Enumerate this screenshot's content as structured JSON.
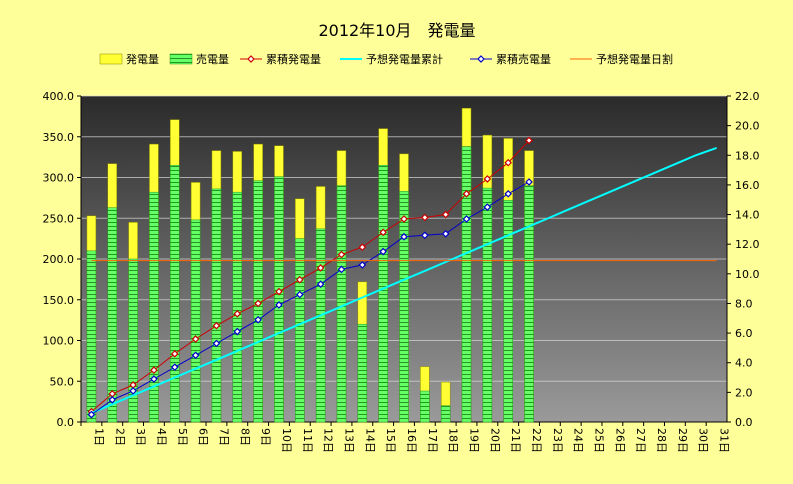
{
  "chart_data": {
    "type": "bar",
    "title": "2012年10月　発電量",
    "categories": [
      "1日",
      "2日",
      "3日",
      "4日",
      "5日",
      "6日",
      "7日",
      "8日",
      "9日",
      "10日",
      "11日",
      "12日",
      "13日",
      "14日",
      "15日",
      "16日",
      "17日",
      "18日",
      "19日",
      "20日",
      "21日",
      "22日",
      "23日",
      "24日",
      "25日",
      "26日",
      "27日",
      "28日",
      "29日",
      "30日",
      "31日"
    ],
    "ylim": [
      0,
      400
    ],
    "yticks": [
      0,
      50,
      100,
      150,
      200,
      250,
      300,
      350,
      400
    ],
    "ytick_labels": [
      "0.0",
      "50.0",
      "100.0",
      "150.0",
      "200.0",
      "250.0",
      "300.0",
      "350.0",
      "400.0"
    ],
    "y2lim": [
      0,
      22
    ],
    "y2ticks": [
      0,
      2,
      4,
      6,
      8,
      10,
      12,
      14,
      16,
      18,
      20,
      22
    ],
    "y2tick_labels": [
      "0.0",
      "2.0",
      "4.0",
      "6.0",
      "8.0",
      "10.0",
      "12.0",
      "14.0",
      "16.0",
      "18.0",
      "20.0",
      "22.0"
    ],
    "grid": true,
    "legend_position": "top",
    "series": [
      {
        "name": "発電量",
        "kind": "bar",
        "axis": "left",
        "color": "#ffff33",
        "values": [
          253,
          317,
          245,
          341,
          371,
          294,
          333,
          332,
          341,
          339,
          274,
          289,
          333,
          172,
          360,
          329,
          68,
          49,
          385,
          352,
          348,
          333,
          null,
          null,
          null,
          null,
          null,
          null,
          null,
          null,
          null
        ]
      },
      {
        "name": "売電量",
        "kind": "bar",
        "axis": "left",
        "color": "#66ff66",
        "values": [
          210,
          263,
          200,
          282,
          315,
          248,
          286,
          282,
          296,
          301,
          225,
          237,
          290,
          120,
          315,
          283,
          38,
          20,
          338,
          287,
          272,
          290,
          null,
          null,
          null,
          null,
          null,
          null,
          null,
          null,
          null
        ]
      },
      {
        "name": "累積発電量",
        "kind": "line",
        "axis": "right",
        "color": "#cc0000",
        "marker": "diamond",
        "values": [
          0.7,
          1.9,
          2.5,
          3.5,
          4.6,
          5.6,
          6.5,
          7.3,
          8.0,
          8.8,
          9.6,
          10.4,
          11.3,
          11.8,
          12.8,
          13.7,
          13.8,
          14.0,
          15.4,
          16.4,
          17.5,
          19.0,
          null,
          null,
          null,
          null,
          null,
          null,
          null,
          null,
          null
        ]
      },
      {
        "name": "予想発電量累計",
        "kind": "line",
        "axis": "right",
        "color": "#00ffff",
        "values": [
          0.6,
          1.2,
          1.8,
          2.4,
          3.0,
          3.6,
          4.2,
          4.8,
          5.4,
          6.0,
          6.6,
          7.2,
          7.8,
          8.4,
          9.0,
          9.6,
          10.2,
          10.8,
          11.4,
          12.0,
          12.6,
          13.2,
          13.8,
          14.4,
          15.0,
          15.6,
          16.2,
          16.8,
          17.4,
          18.0,
          18.5
        ]
      },
      {
        "name": "累積売電量",
        "kind": "line",
        "axis": "right",
        "color": "#0000cc",
        "marker": "diamond",
        "values": [
          0.5,
          1.5,
          2.1,
          2.9,
          3.7,
          4.5,
          5.3,
          6.1,
          6.9,
          7.9,
          8.6,
          9.3,
          10.3,
          10.6,
          11.5,
          12.5,
          12.6,
          12.7,
          13.7,
          14.5,
          15.4,
          16.2,
          null,
          null,
          null,
          null,
          null,
          null,
          null,
          null,
          null
        ]
      },
      {
        "name": "予想発電量日割",
        "kind": "line",
        "axis": "left",
        "color": "#ff6600",
        "values": [
          198,
          198,
          198,
          198,
          198,
          198,
          198,
          198,
          198,
          198,
          198,
          198,
          198,
          198,
          198,
          198,
          198,
          198,
          198,
          198,
          198,
          198,
          198,
          198,
          198,
          198,
          198,
          198,
          198,
          198,
          198
        ]
      }
    ]
  }
}
